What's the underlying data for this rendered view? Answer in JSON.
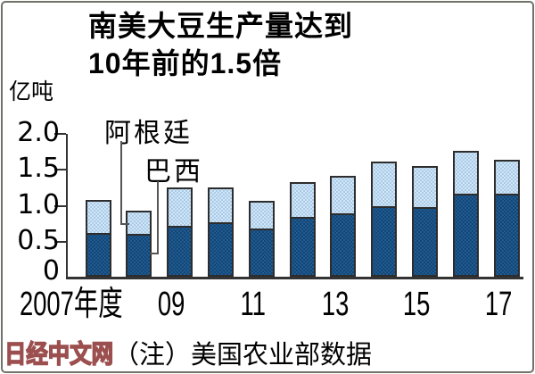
{
  "title": {
    "line1": "南美大豆生产量达到",
    "line2": "10年前的1.5倍"
  },
  "unit_label": "亿吨",
  "annotations": {
    "argentina": "阿根廷",
    "brazil": "巴西"
  },
  "note": "（注）美国农业部数据",
  "watermark": "日经中文网",
  "colors": {
    "brazil_base": "#1e5c94",
    "brazil_dot": "#15416d",
    "argentina_base": "#a7cbe9",
    "argentina_dot": "#dcebf7",
    "axis": "#333333",
    "leader": "#555555",
    "watermark_stroke": "#9c4f4f"
  },
  "chart_data": {
    "type": "bar",
    "stacked": true,
    "title": "南美大豆生产量达到10年前的1.5倍",
    "ylabel": "亿吨",
    "categories": [
      "2007",
      "2008",
      "2009",
      "2010",
      "2011",
      "2012",
      "2013",
      "2014",
      "2015",
      "2016",
      "2017"
    ],
    "x_tick_labels": [
      "2007年度",
      "09",
      "11",
      "13",
      "15",
      "17"
    ],
    "series": [
      {
        "name": "巴西",
        "values": [
          0.6,
          0.59,
          0.69,
          0.75,
          0.66,
          0.82,
          0.87,
          0.97,
          0.96,
          1.14,
          1.14
        ]
      },
      {
        "name": "阿根廷",
        "values": [
          0.47,
          0.33,
          0.55,
          0.49,
          0.4,
          0.5,
          0.53,
          0.63,
          0.58,
          0.61,
          0.49
        ]
      }
    ],
    "ylim": [
      0,
      2.0
    ],
    "yticks": [
      0,
      0.5,
      1.0,
      1.5,
      2.0
    ],
    "ytick_labels": [
      "0",
      "0.5",
      "1.0",
      "1.5",
      "2.0"
    ],
    "grid": false,
    "legend_position": "leader-lines"
  }
}
